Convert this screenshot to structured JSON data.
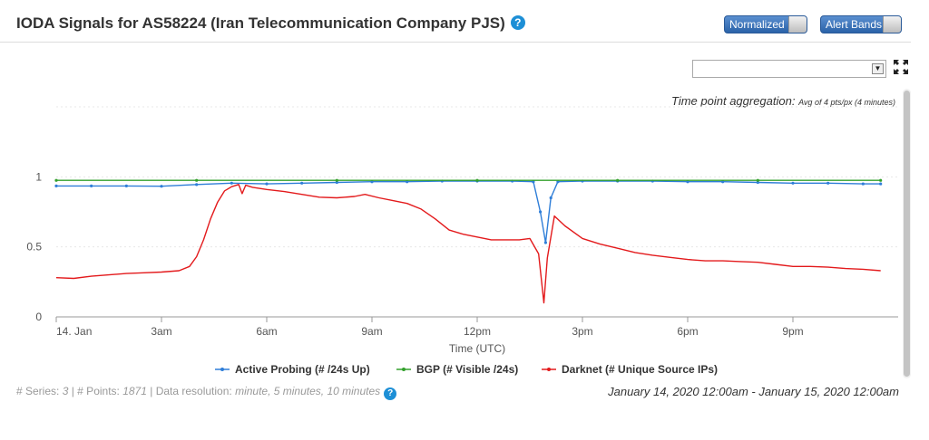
{
  "header": {
    "title": "IODA Signals for AS58224 (Iran Telecommunication Company PJS)",
    "help_label": "?",
    "normalized_label": "Normalized",
    "alert_bands_label": "Alert Bands"
  },
  "controls": {
    "select_value": "",
    "icons": {
      "select": "dropdown-arrow-icon",
      "fullscreen": "fullscreen-icon",
      "help": "help-icon"
    }
  },
  "aggregation": {
    "label": "Time point aggregation:",
    "value": "Avg of 4 pts/px (",
    "value_em": "4 minutes",
    "value_end": ")"
  },
  "footer": {
    "series_label": "# Series: ",
    "series_value": "3",
    "points_label": " | # Points: ",
    "points_value": "1871",
    "resolution_label": " | Data resolution: ",
    "resolution_value": "minute, 5 minutes, 10 minutes",
    "date_range": "January 14, 2020 12:00am - January 15, 2020 12:00am"
  },
  "colors": {
    "active_probing": "#2f7ed8",
    "bgp": "#33a02c",
    "darknet": "#e31a1c",
    "accent": "#1d8fd6"
  },
  "chart_data": {
    "type": "line",
    "xlabel": "Time (UTC)",
    "ylabel": "",
    "ylim": [
      0,
      1.5
    ],
    "xlim": [
      0,
      24
    ],
    "y_ticks": [
      {
        "value": 0,
        "label": "0"
      },
      {
        "value": 0.5,
        "label": "0.5"
      },
      {
        "value": 1,
        "label": "1"
      }
    ],
    "x_ticks": [
      {
        "value": 0,
        "label": "14. Jan"
      },
      {
        "value": 3,
        "label": "3am"
      },
      {
        "value": 6,
        "label": "6am"
      },
      {
        "value": 9,
        "label": "9am"
      },
      {
        "value": 12,
        "label": "12pm"
      },
      {
        "value": 15,
        "label": "3pm"
      },
      {
        "value": 18,
        "label": "6pm"
      },
      {
        "value": 21,
        "label": "9pm"
      }
    ],
    "grid": true,
    "legend_position": "bottom-center",
    "series": [
      {
        "name": "Active Probing (# /24s Up)",
        "color": "#2f7ed8",
        "marker": true,
        "points": [
          [
            0,
            0.935
          ],
          [
            1,
            0.935
          ],
          [
            2,
            0.935
          ],
          [
            3,
            0.933
          ],
          [
            4,
            0.945
          ],
          [
            5,
            0.955
          ],
          [
            6,
            0.95
          ],
          [
            7,
            0.955
          ],
          [
            8,
            0.96
          ],
          [
            9,
            0.965
          ],
          [
            10,
            0.965
          ],
          [
            11,
            0.97
          ],
          [
            12,
            0.97
          ],
          [
            13,
            0.97
          ],
          [
            13.6,
            0.965
          ],
          [
            13.8,
            0.75
          ],
          [
            13.95,
            0.53
          ],
          [
            14.1,
            0.85
          ],
          [
            14.3,
            0.965
          ],
          [
            15,
            0.97
          ],
          [
            16,
            0.97
          ],
          [
            17,
            0.97
          ],
          [
            18,
            0.965
          ],
          [
            19,
            0.965
          ],
          [
            20,
            0.96
          ],
          [
            21,
            0.955
          ],
          [
            22,
            0.955
          ],
          [
            23,
            0.95
          ],
          [
            23.5,
            0.95
          ]
        ]
      },
      {
        "name": "BGP (# Visible /24s)",
        "color": "#33a02c",
        "marker": true,
        "points": [
          [
            0,
            0.975
          ],
          [
            4,
            0.975
          ],
          [
            8,
            0.975
          ],
          [
            12,
            0.975
          ],
          [
            16,
            0.975
          ],
          [
            20,
            0.975
          ],
          [
            23.5,
            0.975
          ]
        ]
      },
      {
        "name": "Darknet (# Unique Source IPs)",
        "color": "#e31a1c",
        "marker": false,
        "points": [
          [
            0,
            0.28
          ],
          [
            0.5,
            0.275
          ],
          [
            1,
            0.29
          ],
          [
            1.5,
            0.3
          ],
          [
            2,
            0.31
          ],
          [
            2.5,
            0.315
          ],
          [
            3,
            0.32
          ],
          [
            3.5,
            0.33
          ],
          [
            3.8,
            0.36
          ],
          [
            4.0,
            0.43
          ],
          [
            4.2,
            0.55
          ],
          [
            4.4,
            0.7
          ],
          [
            4.6,
            0.82
          ],
          [
            4.8,
            0.9
          ],
          [
            5.0,
            0.93
          ],
          [
            5.2,
            0.945
          ],
          [
            5.3,
            0.88
          ],
          [
            5.4,
            0.94
          ],
          [
            5.6,
            0.925
          ],
          [
            6,
            0.91
          ],
          [
            6.5,
            0.895
          ],
          [
            7,
            0.875
          ],
          [
            7.5,
            0.855
          ],
          [
            8,
            0.85
          ],
          [
            8.5,
            0.86
          ],
          [
            8.8,
            0.875
          ],
          [
            9.2,
            0.85
          ],
          [
            9.6,
            0.83
          ],
          [
            10,
            0.81
          ],
          [
            10.4,
            0.77
          ],
          [
            10.8,
            0.7
          ],
          [
            11.2,
            0.62
          ],
          [
            11.6,
            0.59
          ],
          [
            12,
            0.57
          ],
          [
            12.4,
            0.55
          ],
          [
            12.8,
            0.55
          ],
          [
            13.2,
            0.55
          ],
          [
            13.5,
            0.56
          ],
          [
            13.75,
            0.45
          ],
          [
            13.9,
            0.1
          ],
          [
            14.0,
            0.42
          ],
          [
            14.2,
            0.72
          ],
          [
            14.5,
            0.65
          ],
          [
            15,
            0.56
          ],
          [
            15.5,
            0.52
          ],
          [
            16,
            0.49
          ],
          [
            16.5,
            0.46
          ],
          [
            17,
            0.44
          ],
          [
            17.5,
            0.425
          ],
          [
            18,
            0.41
          ],
          [
            18.5,
            0.4
          ],
          [
            19,
            0.4
          ],
          [
            19.5,
            0.395
          ],
          [
            20,
            0.39
          ],
          [
            20.5,
            0.375
          ],
          [
            21,
            0.36
          ],
          [
            21.5,
            0.36
          ],
          [
            22,
            0.355
          ],
          [
            22.5,
            0.345
          ],
          [
            23,
            0.34
          ],
          [
            23.5,
            0.33
          ]
        ]
      }
    ]
  }
}
